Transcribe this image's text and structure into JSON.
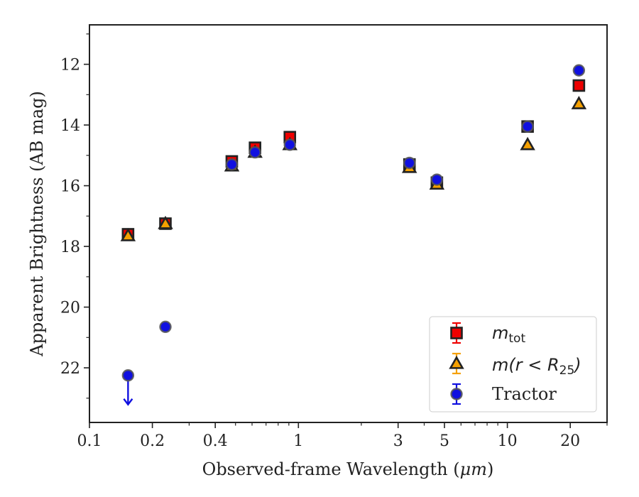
{
  "chart_data": {
    "type": "scatter",
    "xlabel_prefix": "Observed-frame Wavelength (",
    "xlabel_unit": "μm",
    "xlabel_suffix": ")",
    "ylabel": "Apparent Brightness (AB mag)",
    "x_scale": "log",
    "xlim": [
      0.1,
      30
    ],
    "ylim": [
      23.8,
      10.7
    ],
    "y_inverted": true,
    "grid": false,
    "legend_position": "bottom-right",
    "x_major_ticks": [
      {
        "value": 0.1,
        "label": "0.1"
      },
      {
        "value": 0.2,
        "label": "0.2"
      },
      {
        "value": 0.4,
        "label": "0.4"
      },
      {
        "value": 1,
        "label": "1"
      },
      {
        "value": 3,
        "label": "3"
      },
      {
        "value": 5,
        "label": "5"
      },
      {
        "value": 10,
        "label": "10"
      },
      {
        "value": 20,
        "label": "20"
      }
    ],
    "y_major_ticks": [
      {
        "value": 12,
        "label": "12"
      },
      {
        "value": 14,
        "label": "14"
      },
      {
        "value": 16,
        "label": "16"
      },
      {
        "value": 18,
        "label": "18"
      },
      {
        "value": 20,
        "label": "20"
      },
      {
        "value": 22,
        "label": "22"
      }
    ],
    "series": [
      {
        "name": "m_tot",
        "legend_main": "m",
        "legend_sub": "tot",
        "marker": "square",
        "color": "#ee0000",
        "edge_color": "#222222",
        "points": [
          {
            "x": 0.153,
            "y": 17.6
          },
          {
            "x": 0.231,
            "y": 17.25
          },
          {
            "x": 0.48,
            "y": 15.2
          },
          {
            "x": 0.62,
            "y": 14.75
          },
          {
            "x": 0.91,
            "y": 14.4
          },
          {
            "x": 3.4,
            "y": 15.3
          },
          {
            "x": 4.6,
            "y": 15.9
          },
          {
            "x": 12.5,
            "y": 14.05
          },
          {
            "x": 22.0,
            "y": 12.7
          }
        ]
      },
      {
        "name": "m(r < R25)",
        "legend_main": "m(r < R",
        "legend_sub": "25",
        "legend_close": ")",
        "marker": "triangle",
        "color": "#f5a000",
        "edge_color": "#222222",
        "points": [
          {
            "x": 0.153,
            "y": 17.65
          },
          {
            "x": 0.231,
            "y": 17.25
          },
          {
            "x": 0.48,
            "y": 15.35
          },
          {
            "x": 0.62,
            "y": 14.9
          },
          {
            "x": 0.91,
            "y": 14.65
          },
          {
            "x": 3.4,
            "y": 15.4
          },
          {
            "x": 4.6,
            "y": 15.95
          },
          {
            "x": 12.5,
            "y": 14.65
          },
          {
            "x": 22.0,
            "y": 13.3
          }
        ]
      },
      {
        "name": "Tractor",
        "legend_label": "Tractor",
        "marker": "circle",
        "color": "#1010e0",
        "edge_color": "#555555",
        "points": [
          {
            "x": 0.153,
            "y": 22.25,
            "upper_limit": true
          },
          {
            "x": 0.231,
            "y": 20.65
          },
          {
            "x": 0.48,
            "y": 15.3
          },
          {
            "x": 0.62,
            "y": 14.9
          },
          {
            "x": 0.91,
            "y": 14.65
          },
          {
            "x": 3.4,
            "y": 15.25
          },
          {
            "x": 4.6,
            "y": 15.8
          },
          {
            "x": 12.5,
            "y": 14.05
          },
          {
            "x": 22.0,
            "y": 12.2
          }
        ]
      }
    ]
  }
}
